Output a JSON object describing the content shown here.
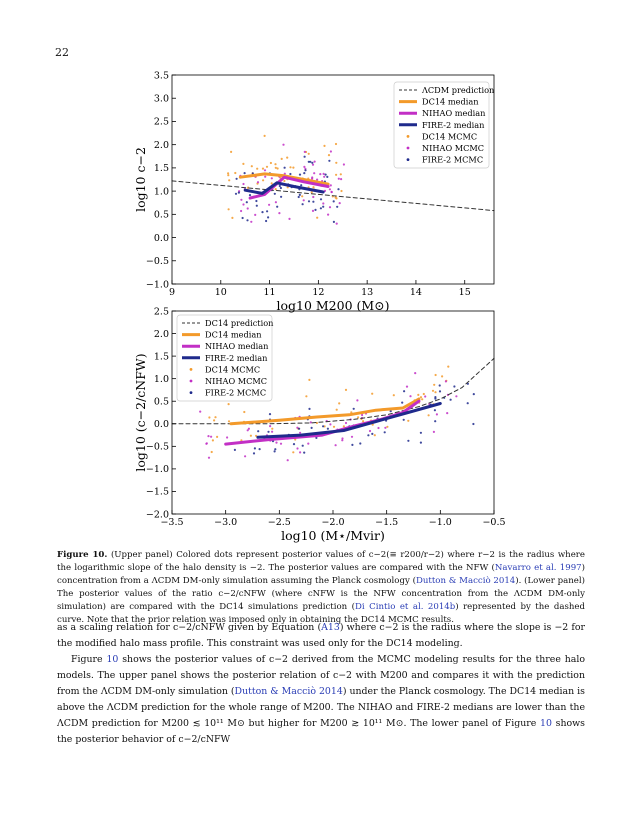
{
  "page_number": "22",
  "chart_data": [
    {
      "type": "scatter",
      "xlabel": "log10 M200 (M⊙)",
      "ylabel": "log10 c−2",
      "xlim": [
        9,
        15.6
      ],
      "ylim": [
        -1.0,
        3.5
      ],
      "xticks": [
        "9",
        "10",
        "11",
        "12",
        "13",
        "14",
        "15"
      ],
      "yticks": [
        "−1.0",
        "−0.5",
        "0.0",
        "0.5",
        "1.0",
        "1.5",
        "2.0",
        "2.5",
        "3.0",
        "3.5"
      ],
      "legend_position": "top-right",
      "series": [
        {
          "name": "ΛCDM prediction",
          "kind": "dashed-line",
          "color": "#333333",
          "x": [
            9.0,
            15.6
          ],
          "y": [
            1.22,
            0.58
          ]
        },
        {
          "name": "DC14 median",
          "kind": "line",
          "color": "#f39a2a",
          "x": [
            10.4,
            10.9,
            11.3,
            11.7,
            12.2
          ],
          "y": [
            1.3,
            1.37,
            1.33,
            1.25,
            1.15
          ]
        },
        {
          "name": "NIHAO median",
          "kind": "line",
          "color": "#c22fc5",
          "x": [
            10.6,
            10.9,
            11.3,
            11.7,
            12.2
          ],
          "y": [
            0.85,
            0.93,
            1.3,
            1.2,
            1.1
          ]
        },
        {
          "name": "FIRE-2 median",
          "kind": "line",
          "color": "#1f2a8c",
          "x": [
            10.5,
            10.85,
            11.15,
            11.5,
            12.1
          ],
          "y": [
            1.02,
            0.95,
            1.18,
            1.1,
            0.98
          ]
        },
        {
          "name": "DC14 MCMC",
          "kind": "points",
          "color": "#f39a2a"
        },
        {
          "name": "NIHAO MCMC",
          "kind": "points",
          "color": "#c22fc5"
        },
        {
          "name": "FIRE-2 MCMC",
          "kind": "points",
          "color": "#1f2a8c"
        }
      ]
    },
    {
      "type": "scatter",
      "xlabel": "log10 (M⋆/Mvir)",
      "ylabel": "log10 (c−2/cNFW)",
      "xlim": [
        -3.5,
        -0.5
      ],
      "ylim": [
        -2.0,
        2.5
      ],
      "xticks": [
        "−3.5",
        "−3.0",
        "−2.5",
        "−2.0",
        "−1.5",
        "−1.0",
        "−0.5"
      ],
      "yticks": [
        "−2.0",
        "−1.5",
        "−1.0",
        "−0.5",
        "0.0",
        "0.5",
        "1.0",
        "1.5",
        "2.0",
        "2.5"
      ],
      "legend_position": "top-left",
      "series": [
        {
          "name": "DC14 prediction",
          "kind": "dashed-line",
          "color": "#333333",
          "x": [
            -3.5,
            -2.6,
            -2.2,
            -1.8,
            -1.5,
            -1.2,
            -1.0,
            -0.8,
            -0.5
          ],
          "y": [
            0.0,
            0.0,
            0.02,
            0.1,
            0.2,
            0.38,
            0.55,
            0.8,
            1.45
          ]
        },
        {
          "name": "DC14 median",
          "kind": "line",
          "color": "#f39a2a",
          "x": [
            -2.95,
            -2.5,
            -2.15,
            -1.85,
            -1.6,
            -1.35,
            -1.2
          ],
          "y": [
            0.0,
            0.08,
            0.15,
            0.2,
            0.3,
            0.35,
            0.55
          ]
        },
        {
          "name": "NIHAO median",
          "kind": "line",
          "color": "#c22fc5",
          "x": [
            -3.0,
            -2.6,
            -2.1,
            -1.8,
            -1.55,
            -1.35,
            -1.2
          ],
          "y": [
            -0.45,
            -0.35,
            -0.25,
            -0.05,
            0.1,
            0.25,
            0.5
          ]
        },
        {
          "name": "FIRE-2 median",
          "kind": "line",
          "color": "#1f2a8c",
          "x": [
            -2.7,
            -2.3,
            -1.9,
            -1.6,
            -1.3,
            -1.0
          ],
          "y": [
            -0.3,
            -0.25,
            -0.15,
            0.05,
            0.25,
            0.45
          ]
        },
        {
          "name": "DC14 MCMC",
          "kind": "points",
          "color": "#f39a2a"
        },
        {
          "name": "NIHAO MCMC",
          "kind": "points",
          "color": "#c22fc5"
        },
        {
          "name": "FIRE-2 MCMC",
          "kind": "points",
          "color": "#1f2a8c"
        }
      ]
    }
  ],
  "caption": {
    "label": "Figure 10.",
    "text_1": " (Upper panel) Colored dots represent posterior values of c−2(≡ r200/r−2) where r−2 is the radius where the logarithmic slope of the halo density is −2. The posterior values are compared with the NFW (",
    "cite_1": "Navarro et al. 1997",
    "text_2": ") concentration from a ΛCDM DM-only simulation assuming the Planck cosmology (",
    "cite_2": "Dutton & Macciò 2014",
    "text_3": "). (Lower panel) The posterior values of the ratio c−2/cNFW (where cNFW is the NFW concentration from the ΛCDM DM-only simulation) are compared with the DC14 simulations prediction (",
    "cite_3": "Di Cintio et al. 2014b",
    "text_4": ") represented by the dashed curve. Note that the prior relation was imposed only in obtaining the DC14 MCMC results."
  },
  "body": {
    "p1_a": "as a scaling relation for c−2/cNFW given by Equation (",
    "p1_ref": "A13",
    "p1_b": ") where c−2 is the radius where the slope is −2 for the modified halo mass profile. This constraint was used only for the DC14 modeling.",
    "p2_a": "Figure ",
    "p2_ref1": "10",
    "p2_b": " shows the posterior values of c−2 derived from the MCMC modeling results for the three halo models. The upper panel shows the posterior relation of c−2 with M200 and compares it with the prediction from the ΛCDM DM-only simulation (",
    "p2_cite": "Dutton & Macciò 2014",
    "p2_c": ") under the Planck cosmology. The DC14 median is above the ΛCDM prediction for the whole range of M200. The NIHAO and FIRE-2 medians are lower than the ΛCDM prediction for M200 ≲ 10¹¹ M⊙ but higher for M200 ≳ 10¹¹ M⊙. The lower panel of Figure ",
    "p2_ref2": "10",
    "p2_d": " shows the posterior behavior of c−2/cNFW"
  }
}
